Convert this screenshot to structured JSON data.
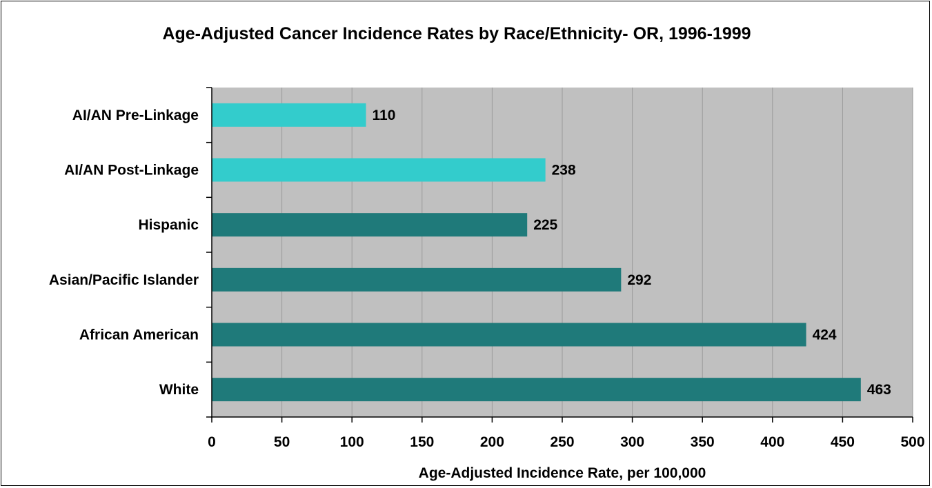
{
  "chart_data": {
    "type": "bar",
    "orientation": "horizontal",
    "title": "Age-Adjusted Cancer Incidence Rates by Race/Ethnicity- OR, 1996-1999",
    "xlabel": "Age-Adjusted Incidence Rate, per 100,000",
    "ylabel": "",
    "categories": [
      "AI/AN Pre-Linkage",
      "AI/AN Post-Linkage",
      "Hispanic",
      "Asian/Pacific Islander",
      "African American",
      "White"
    ],
    "values": [
      110,
      238,
      225,
      292,
      424,
      463
    ],
    "bar_colors": [
      "#33CCCC",
      "#33CCCC",
      "#1F7A7A",
      "#1F7A7A",
      "#1F7A7A",
      "#1F7A7A"
    ],
    "xlim": [
      0,
      500
    ],
    "xticks": [
      0,
      50,
      100,
      150,
      200,
      250,
      300,
      350,
      400,
      450,
      500
    ],
    "grid": true,
    "plot_background": "#C0C0C0",
    "legend": "none"
  }
}
